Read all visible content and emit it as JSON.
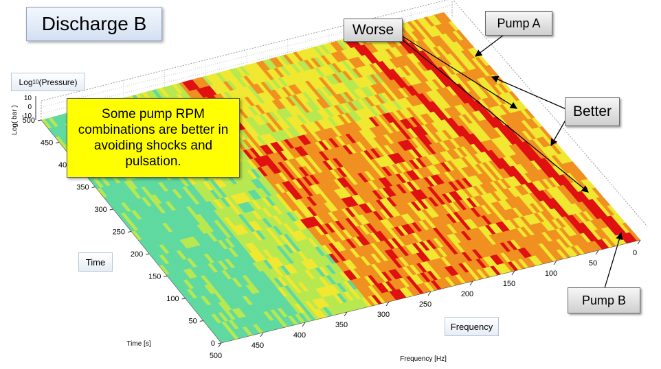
{
  "slide": {
    "title": "Discharge B",
    "note": "Some pump RPM combinations are better in avoiding shocks and pulsation.",
    "labels": {
      "worse": "Worse",
      "better": "Better",
      "pump_a": "Pump A",
      "pump_b": "Pump B",
      "time": "Time",
      "frequency": "Frequency",
      "pressure_prefix": "Log",
      "pressure_sub": "10",
      "pressure_suffix": "(Pressure)"
    }
  },
  "chart_data": {
    "type": "heatmap",
    "title": "",
    "xlabel": "Frequency [Hz]",
    "ylabel": "Time [s]",
    "zlabel": "Log( bar )",
    "xlim": [
      0,
      500
    ],
    "ylim": [
      0,
      500
    ],
    "zlim": [
      -10,
      10
    ],
    "x_ticks": [
      0,
      50,
      100,
      150,
      200,
      250,
      300,
      350,
      400,
      450,
      500
    ],
    "y_ticks": [
      0,
      50,
      100,
      150,
      200,
      250,
      300,
      350,
      400,
      450,
      500
    ],
    "z_ticks": [
      10,
      0,
      -10
    ],
    "grid": true,
    "colors": {
      "low": "#5fd9a0",
      "mid_low": "#b8e850",
      "mid": "#f0e830",
      "mid_high": "#f09020",
      "high": "#e01010"
    }
  }
}
